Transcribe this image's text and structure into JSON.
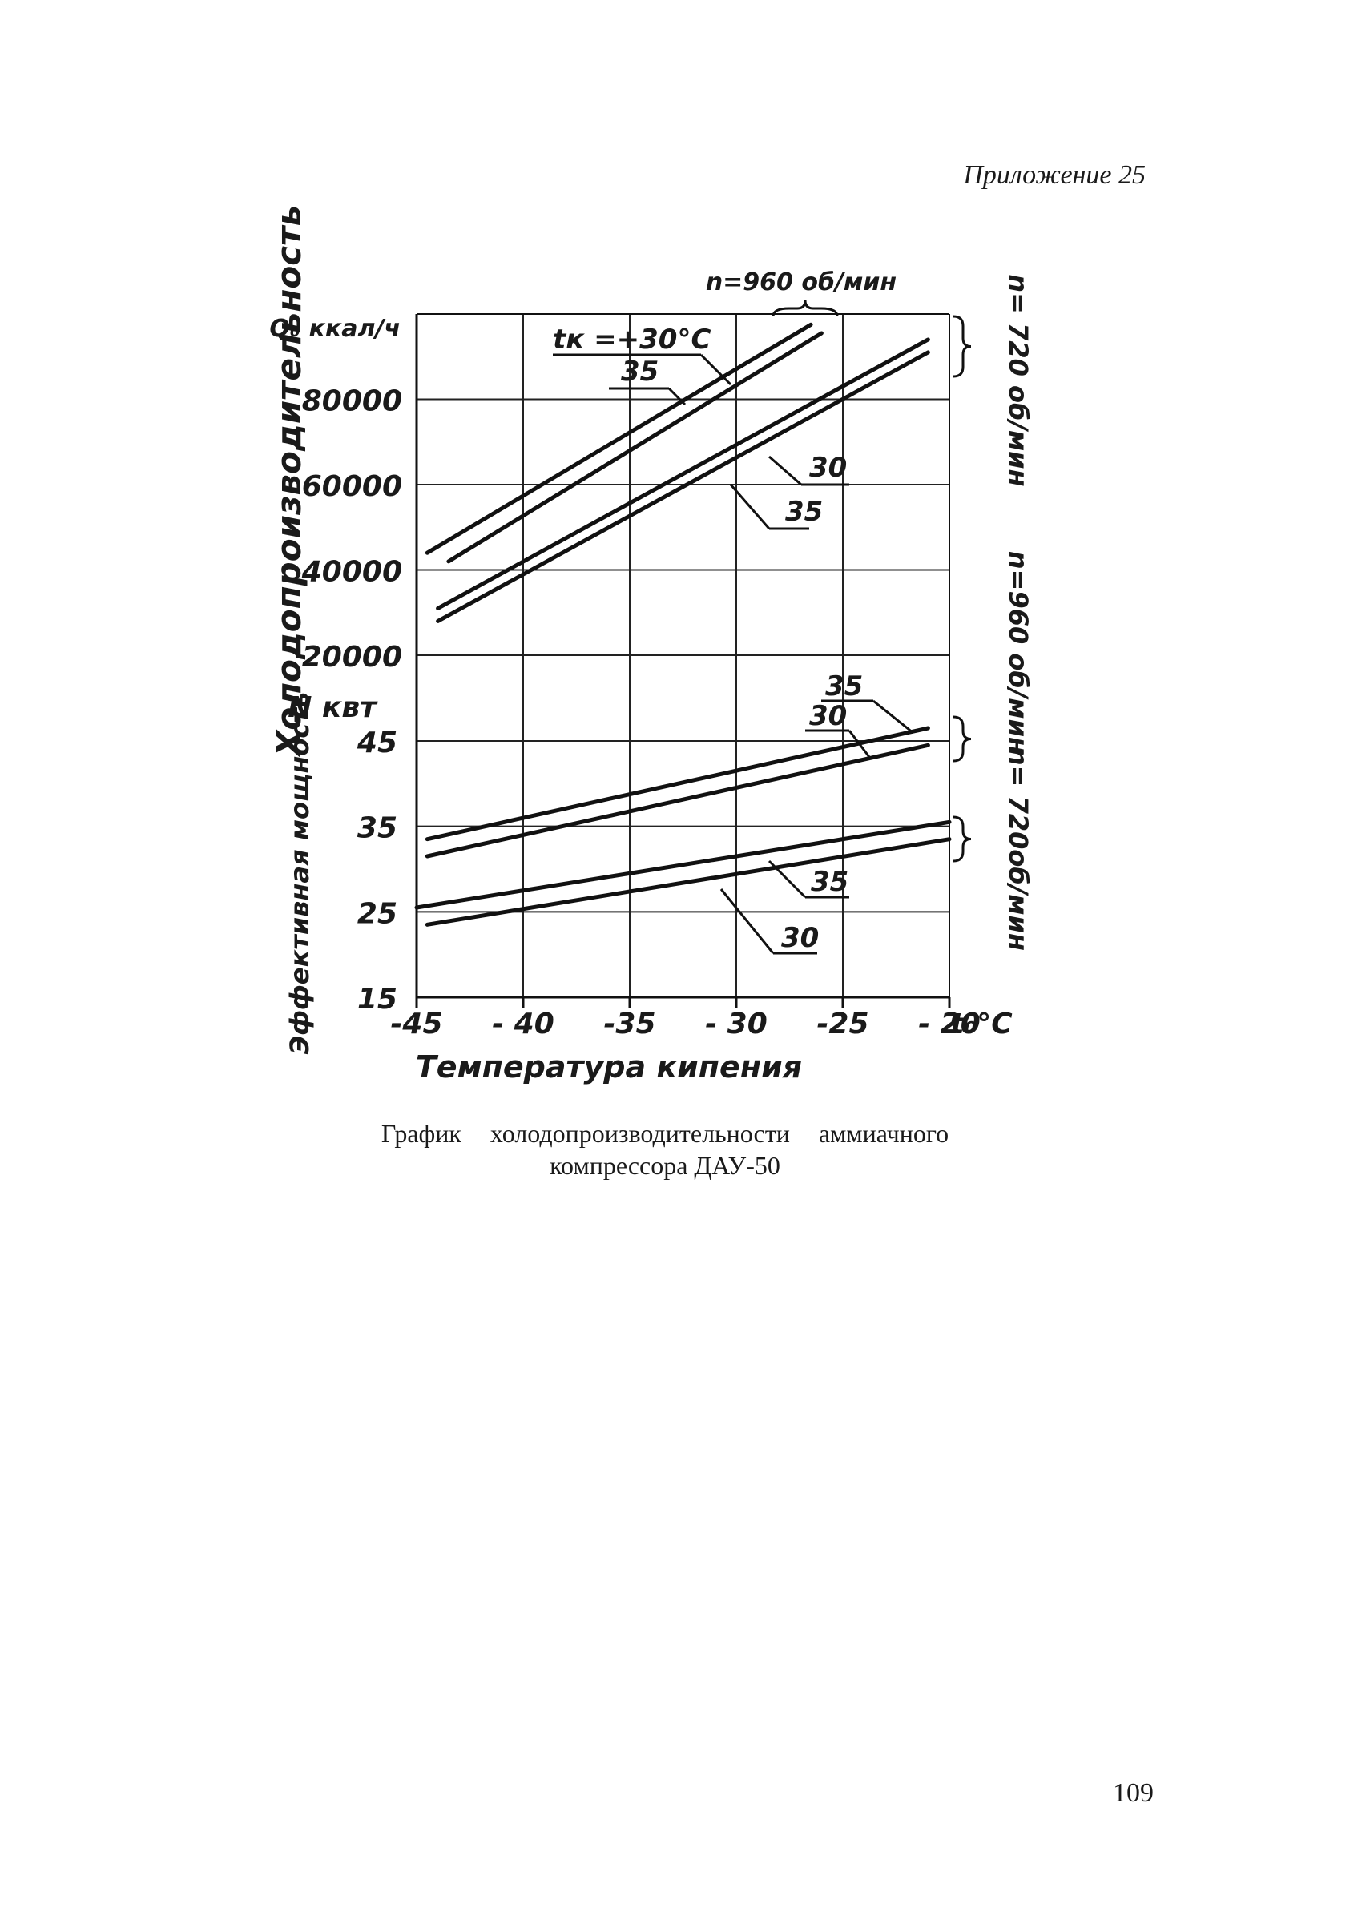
{
  "page": {
    "header": "Приложение 25",
    "page_number": "109",
    "caption_line1": "График холодопроизводительности аммиачного",
    "caption_line2": "компрессора ДАУ-50"
  },
  "chart_data": {
    "type": "line",
    "x": [
      -45,
      -40,
      -35,
      -30,
      -25,
      -20
    ],
    "xlim": [
      -45,
      -20
    ],
    "xlabel": "Температура кипения",
    "x_unit": "t₀°C",
    "x_tick_labels": [
      "-45",
      "- 40",
      "-35",
      "- 30",
      "-25",
      "- 20"
    ],
    "grid": true,
    "upper": {
      "y_axis_title": "Холодопроизводительность",
      "y_unit": "Q₀ ккал/ч",
      "y_tick_labels": [
        "80000",
        "60000",
        "40000",
        "20000"
      ],
      "ylim": [
        20000,
        100000
      ],
      "series": [
        {
          "name": "n=960 об/мин, tк=+30°C",
          "x": [
            -44.5,
            -26.5
          ],
          "y": [
            44000,
            97500
          ]
        },
        {
          "name": "n=960 об/мин, tк=35",
          "x": [
            -43.5,
            -26
          ],
          "y": [
            42000,
            95500
          ]
        },
        {
          "name": "n=720 об/мин, tк=30",
          "x": [
            -44,
            -21
          ],
          "y": [
            31000,
            94000
          ]
        },
        {
          "name": "n=720 об/мин, tк=35",
          "x": [
            -44,
            -21
          ],
          "y": [
            28000,
            91000
          ]
        }
      ],
      "annotations": [
        "tк =+30°C",
        "35",
        "30",
        "35"
      ],
      "top_label": "n=960 об/мин",
      "right_label": "n= 720 об/мин"
    },
    "lower": {
      "y_axis_title": "Эффективная мощность",
      "y_unit": "N квт",
      "y_tick_labels": [
        "45",
        "35",
        "25",
        "15"
      ],
      "ylim": [
        15,
        45
      ],
      "series": [
        {
          "name": "n=960 об/мин, 35",
          "x": [
            -44.5,
            -21
          ],
          "y": [
            33.5,
            46.5
          ]
        },
        {
          "name": "n=960 об/мин, 30",
          "x": [
            -44.5,
            -21
          ],
          "y": [
            31.5,
            44.5
          ]
        },
        {
          "name": "n=720 об/мин, 35",
          "x": [
            -45,
            -20
          ],
          "y": [
            25.5,
            35.5
          ]
        },
        {
          "name": "n=720 об/мин, 30",
          "x": [
            -44.5,
            -20
          ],
          "y": [
            23.5,
            33.5
          ]
        }
      ],
      "annotations": [
        "35",
        "30",
        "35",
        "30"
      ],
      "right_label_upper": "n=960 об/мин",
      "right_label_lower": "n= 720об/мин"
    }
  }
}
